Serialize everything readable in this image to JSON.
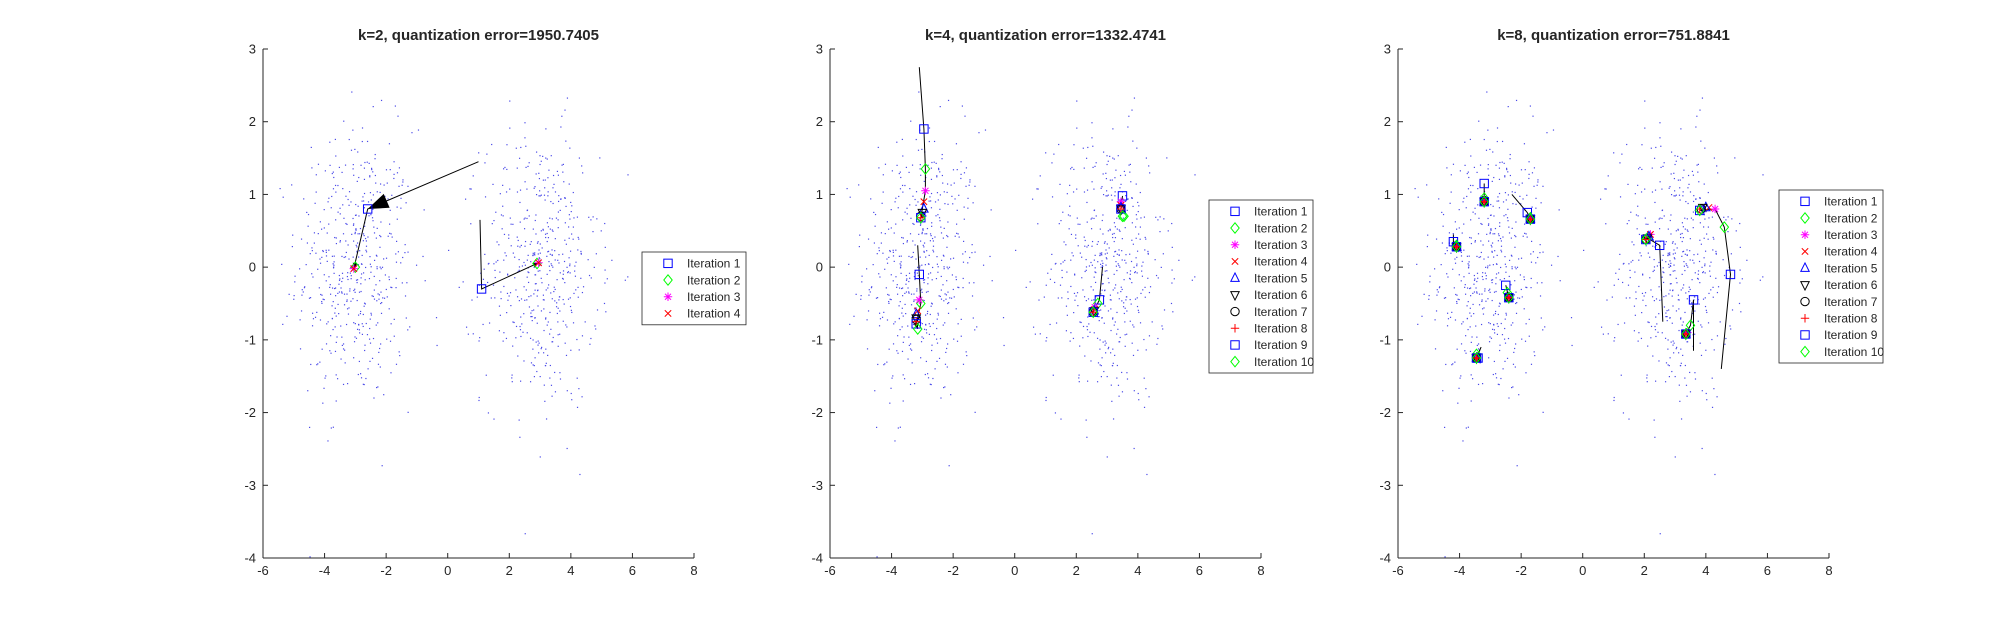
{
  "chart_data": [
    {
      "type": "scatter",
      "title": "k=2, quantization error=1950.7405",
      "xlabel": "",
      "ylabel": "",
      "xlim": [
        -6,
        8
      ],
      "ylim": [
        -4,
        3
      ],
      "xticks": [
        "-6",
        "-4",
        "-2",
        "0",
        "2",
        "4",
        "6",
        "8"
      ],
      "yticks": [
        "-4",
        "-3",
        "-2",
        "-1",
        "0",
        "1",
        "2",
        "3"
      ],
      "grid": false,
      "legend_position": "right",
      "iterations": [
        {
          "name": "Iteration 1",
          "marker": "square",
          "color": "#0000ff",
          "points": [
            [
              -2.6,
              0.8
            ],
            [
              1.1,
              -0.3
            ]
          ]
        },
        {
          "name": "Iteration 2",
          "marker": "diamond",
          "color": "#00ff00",
          "points": [
            [
              -3.0,
              0.0
            ],
            [
              2.9,
              0.05
            ]
          ]
        },
        {
          "name": "Iteration 3",
          "marker": "asterisk",
          "color": "#ff00ff",
          "points": [
            [
              -3.05,
              -0.02
            ],
            [
              2.95,
              0.06
            ]
          ]
        },
        {
          "name": "Iteration 4",
          "marker": "x",
          "color": "#ff0000",
          "points": [
            [
              -3.05,
              -0.02
            ],
            [
              2.95,
              0.06
            ]
          ]
        }
      ],
      "trails": [
        {
          "points": [
            [
              1.0,
              1.45
            ],
            [
              -2.6,
              0.8
            ],
            [
              -3.05,
              -0.02
            ]
          ]
        },
        {
          "points": [
            [
              1.05,
              0.65
            ],
            [
              1.1,
              -0.3
            ],
            [
              2.95,
              0.06
            ]
          ]
        }
      ],
      "big_arrow": {
        "from": [
          1.0,
          1.45
        ],
        "to": [
          -2.6,
          0.8
        ]
      }
    },
    {
      "type": "scatter",
      "title": "k=4, quantization error=1332.4741",
      "xlabel": "",
      "ylabel": "",
      "xlim": [
        -6,
        8
      ],
      "ylim": [
        -4,
        3
      ],
      "xticks": [
        "-6",
        "-4",
        "-2",
        "0",
        "2",
        "4",
        "6",
        "8"
      ],
      "yticks": [
        "-4",
        "-3",
        "-2",
        "-1",
        "0",
        "1",
        "2",
        "3"
      ],
      "grid": false,
      "legend_position": "right",
      "iterations": [
        {
          "name": "Iteration 1",
          "marker": "square",
          "color": "#0000ff",
          "points": [
            [
              -2.95,
              1.9
            ],
            [
              -3.1,
              -0.1
            ],
            [
              2.75,
              -0.45
            ],
            [
              3.5,
              0.98
            ]
          ]
        },
        {
          "name": "Iteration 2",
          "marker": "diamond",
          "color": "#00ff00",
          "points": [
            [
              -2.9,
              1.35
            ],
            [
              -3.05,
              -0.5
            ],
            [
              2.7,
              -0.5
            ],
            [
              3.55,
              0.7
            ]
          ]
        },
        {
          "name": "Iteration 3",
          "marker": "asterisk",
          "color": "#ff00ff",
          "points": [
            [
              -2.9,
              1.05
            ],
            [
              -3.1,
              -0.45
            ],
            [
              2.6,
              -0.55
            ],
            [
              3.45,
              0.9
            ]
          ]
        },
        {
          "name": "Iteration 4",
          "marker": "x",
          "color": "#ff0000",
          "points": [
            [
              -2.95,
              0.9
            ],
            [
              -3.15,
              -0.6
            ],
            [
              2.6,
              -0.58
            ],
            [
              3.45,
              0.85
            ]
          ]
        },
        {
          "name": "Iteration 5",
          "marker": "triangle-up",
          "color": "#0000ff",
          "points": [
            [
              -2.95,
              0.8
            ],
            [
              -3.2,
              -0.65
            ],
            [
              2.58,
              -0.6
            ],
            [
              3.45,
              0.82
            ]
          ]
        },
        {
          "name": "Iteration 6",
          "marker": "triangle-down",
          "color": "#000000",
          "points": [
            [
              -3.0,
              0.75
            ],
            [
              -3.2,
              -0.7
            ],
            [
              2.58,
              -0.6
            ],
            [
              3.45,
              0.8
            ]
          ]
        },
        {
          "name": "Iteration 7",
          "marker": "circle",
          "color": "#000000",
          "points": [
            [
              -3.05,
              0.7
            ],
            [
              -3.2,
              -0.72
            ],
            [
              2.55,
              -0.62
            ],
            [
              3.45,
              0.8
            ]
          ]
        },
        {
          "name": "Iteration 8",
          "marker": "plus",
          "color": "#ff0000",
          "points": [
            [
              -3.05,
              0.68
            ],
            [
              -3.2,
              -0.75
            ],
            [
              2.55,
              -0.62
            ],
            [
              3.45,
              0.8
            ]
          ]
        },
        {
          "name": "Iteration 9",
          "marker": "square",
          "color": "#0000ff",
          "points": [
            [
              -3.05,
              0.68
            ],
            [
              -3.2,
              -0.78
            ],
            [
              2.55,
              -0.62
            ],
            [
              3.45,
              0.8
            ]
          ]
        },
        {
          "name": "Iteration 10",
          "marker": "diamond",
          "color": "#00ff00",
          "points": [
            [
              -3.05,
              0.68
            ],
            [
              -3.15,
              -0.85
            ],
            [
              2.55,
              -0.62
            ],
            [
              3.5,
              0.7
            ]
          ]
        }
      ],
      "trails": [
        {
          "points": [
            [
              -3.1,
              2.75
            ],
            [
              -2.95,
              1.9
            ],
            [
              -2.9,
              1.35
            ],
            [
              -2.9,
              1.05
            ],
            [
              -3.05,
              0.68
            ]
          ]
        },
        {
          "points": [
            [
              -3.15,
              0.3
            ],
            [
              -3.1,
              -0.1
            ],
            [
              -3.05,
              -0.5
            ],
            [
              -3.2,
              -0.78
            ],
            [
              -3.15,
              -0.85
            ]
          ]
        },
        {
          "points": [
            [
              2.85,
              0.0
            ],
            [
              2.75,
              -0.45
            ],
            [
              2.55,
              -0.62
            ]
          ]
        },
        {
          "points": [
            [
              3.5,
              0.98
            ],
            [
              3.45,
              0.8
            ]
          ]
        }
      ]
    },
    {
      "type": "scatter",
      "title": "k=8, quantization error=751.8841",
      "xlabel": "",
      "ylabel": "",
      "xlim": [
        -6,
        8
      ],
      "ylim": [
        -4,
        3
      ],
      "xticks": [
        "-6",
        "-4",
        "-2",
        "0",
        "2",
        "4",
        "6",
        "8"
      ],
      "yticks": [
        "-4",
        "-3",
        "-2",
        "-1",
        "0",
        "1",
        "2",
        "3"
      ],
      "grid": false,
      "legend_position": "right",
      "iterations": [
        {
          "name": "Iteration 1",
          "marker": "square",
          "color": "#0000ff",
          "points": [
            [
              -4.2,
              0.35
            ],
            [
              -3.2,
              1.15
            ],
            [
              -1.8,
              0.75
            ],
            [
              -2.5,
              -0.25
            ],
            [
              -3.4,
              -1.25
            ],
            [
              2.5,
              0.3
            ],
            [
              3.6,
              -0.45
            ],
            [
              4.8,
              -0.1
            ]
          ]
        },
        {
          "name": "Iteration 2",
          "marker": "diamond",
          "color": "#00ff00",
          "points": [
            [
              -4.1,
              0.3
            ],
            [
              -3.2,
              0.95
            ],
            [
              -1.7,
              0.68
            ],
            [
              -2.45,
              -0.35
            ],
            [
              -3.45,
              -1.2
            ],
            [
              2.1,
              0.4
            ],
            [
              3.5,
              -0.8
            ],
            [
              4.6,
              0.55
            ]
          ]
        },
        {
          "name": "Iteration 3",
          "marker": "asterisk",
          "color": "#ff00ff",
          "points": [
            [
              -4.1,
              0.28
            ],
            [
              -3.2,
              0.92
            ],
            [
              -1.7,
              0.68
            ],
            [
              -2.4,
              -0.4
            ],
            [
              -3.45,
              -1.25
            ],
            [
              2.2,
              0.45
            ],
            [
              3.4,
              -0.9
            ],
            [
              4.3,
              0.8
            ]
          ]
        },
        {
          "name": "Iteration 4",
          "marker": "x",
          "color": "#ff0000",
          "points": [
            [
              -4.1,
              0.28
            ],
            [
              -3.2,
              0.9
            ],
            [
              -1.7,
              0.66
            ],
            [
              -2.4,
              -0.42
            ],
            [
              -3.45,
              -1.25
            ],
            [
              2.2,
              0.45
            ],
            [
              3.35,
              -0.92
            ],
            [
              4.1,
              0.82
            ]
          ]
        },
        {
          "name": "Iteration 5",
          "marker": "triangle-up",
          "color": "#0000ff",
          "points": [
            [
              -4.1,
              0.28
            ],
            [
              -3.2,
              0.9
            ],
            [
              -1.7,
              0.66
            ],
            [
              -2.4,
              -0.42
            ],
            [
              -3.45,
              -1.25
            ],
            [
              2.15,
              0.42
            ],
            [
              3.35,
              -0.92
            ],
            [
              4.0,
              0.82
            ]
          ]
        },
        {
          "name": "Iteration 6",
          "marker": "triangle-down",
          "color": "#000000",
          "points": [
            [
              -4.1,
              0.28
            ],
            [
              -3.2,
              0.9
            ],
            [
              -1.7,
              0.66
            ],
            [
              -2.4,
              -0.42
            ],
            [
              -3.45,
              -1.25
            ],
            [
              2.1,
              0.4
            ],
            [
              3.35,
              -0.92
            ],
            [
              3.9,
              0.82
            ]
          ]
        },
        {
          "name": "Iteration 7",
          "marker": "circle",
          "color": "#000000",
          "points": [
            [
              -4.1,
              0.28
            ],
            [
              -3.2,
              0.9
            ],
            [
              -1.7,
              0.66
            ],
            [
              -2.4,
              -0.42
            ],
            [
              -3.45,
              -1.25
            ],
            [
              2.05,
              0.38
            ],
            [
              3.35,
              -0.92
            ],
            [
              3.85,
              0.8
            ]
          ]
        },
        {
          "name": "Iteration 8",
          "marker": "plus",
          "color": "#ff0000",
          "points": [
            [
              -4.1,
              0.28
            ],
            [
              -3.2,
              0.9
            ],
            [
              -1.7,
              0.66
            ],
            [
              -2.4,
              -0.42
            ],
            [
              -3.45,
              -1.25
            ],
            [
              2.05,
              0.38
            ],
            [
              3.35,
              -0.92
            ],
            [
              3.8,
              0.8
            ]
          ]
        },
        {
          "name": "Iteration 9",
          "marker": "square",
          "color": "#0000ff",
          "points": [
            [
              -4.1,
              0.28
            ],
            [
              -3.2,
              0.9
            ],
            [
              -1.7,
              0.66
            ],
            [
              -2.4,
              -0.42
            ],
            [
              -3.45,
              -1.25
            ],
            [
              2.05,
              0.38
            ],
            [
              3.35,
              -0.92
            ],
            [
              3.8,
              0.78
            ]
          ]
        },
        {
          "name": "Iteration 10",
          "marker": "diamond",
          "color": "#00ff00",
          "points": [
            [
              -4.1,
              0.28
            ],
            [
              -3.2,
              0.9
            ],
            [
              -1.7,
              0.66
            ],
            [
              -2.4,
              -0.42
            ],
            [
              -3.45,
              -1.25
            ],
            [
              2.05,
              0.38
            ],
            [
              3.35,
              -0.92
            ],
            [
              3.8,
              0.78
            ]
          ]
        }
      ],
      "trails": [
        {
          "points": [
            [
              -4.2,
              0.45
            ],
            [
              -4.2,
              0.35
            ],
            [
              -4.1,
              0.28
            ]
          ]
        },
        {
          "points": [
            [
              -3.2,
              1.15
            ],
            [
              -3.2,
              0.9
            ]
          ]
        },
        {
          "points": [
            [
              -2.3,
              1.0
            ],
            [
              -1.8,
              0.75
            ],
            [
              -1.7,
              0.66
            ]
          ]
        },
        {
          "points": [
            [
              -2.5,
              -0.25
            ],
            [
              -2.4,
              -0.42
            ]
          ]
        },
        {
          "points": [
            [
              -3.3,
              -1.1
            ],
            [
              -3.45,
              -1.25
            ]
          ]
        },
        {
          "points": [
            [
              2.6,
              -0.75
            ],
            [
              2.5,
              0.3
            ],
            [
              2.1,
              0.4
            ],
            [
              2.05,
              0.38
            ]
          ]
        },
        {
          "points": [
            [
              3.6,
              -1.15
            ],
            [
              3.6,
              -0.45
            ],
            [
              3.5,
              -0.8
            ],
            [
              3.35,
              -0.92
            ]
          ]
        },
        {
          "points": [
            [
              4.5,
              -1.4
            ],
            [
              4.8,
              -0.1
            ],
            [
              4.6,
              0.55
            ],
            [
              4.3,
              0.8
            ],
            [
              3.8,
              0.78
            ]
          ]
        }
      ]
    }
  ]
}
